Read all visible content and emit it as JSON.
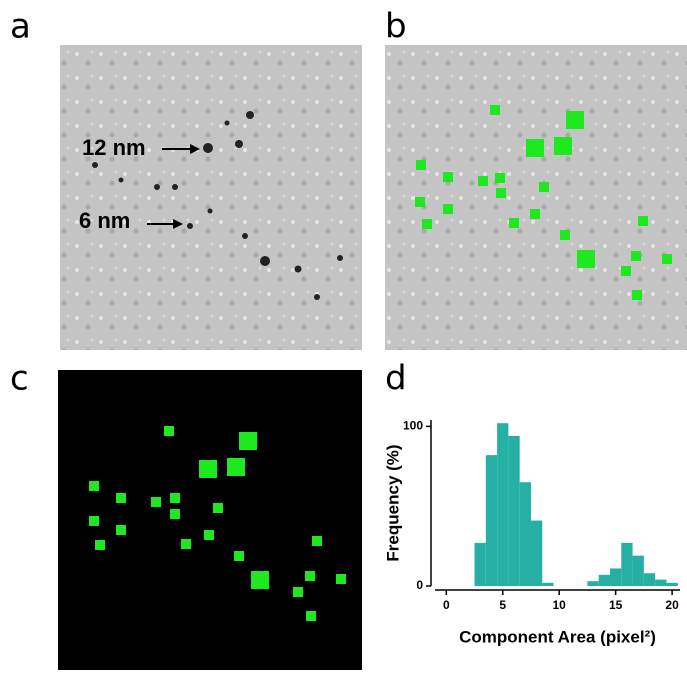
{
  "panels": [
    "a",
    "b",
    "c",
    "d"
  ],
  "annotations": [
    "12 nm",
    "6 nm"
  ],
  "chart_data": {
    "type": "histogram",
    "x_label": "Component Area (pixel²)",
    "y_label": "Frequency (%)",
    "bins": [
      2.5,
      3.5,
      4.5,
      5.5,
      6.5,
      7.5,
      8.5,
      9.5,
      10.5,
      11.5,
      12.5,
      13.5,
      14.5,
      15.5,
      16.5,
      17.5,
      18.5,
      19.5,
      20.5
    ],
    "values": [
      27,
      82,
      102,
      94,
      65,
      41,
      2,
      0,
      0,
      0,
      3,
      7,
      11,
      27,
      19,
      8,
      4,
      2
    ],
    "color": "#26b0a5",
    "xlim": [
      -1,
      20.7
    ],
    "xticks": [
      0,
      5,
      10,
      15,
      20
    ],
    "ylim": [
      0,
      104
    ],
    "yticks": [
      0,
      100
    ]
  }
}
